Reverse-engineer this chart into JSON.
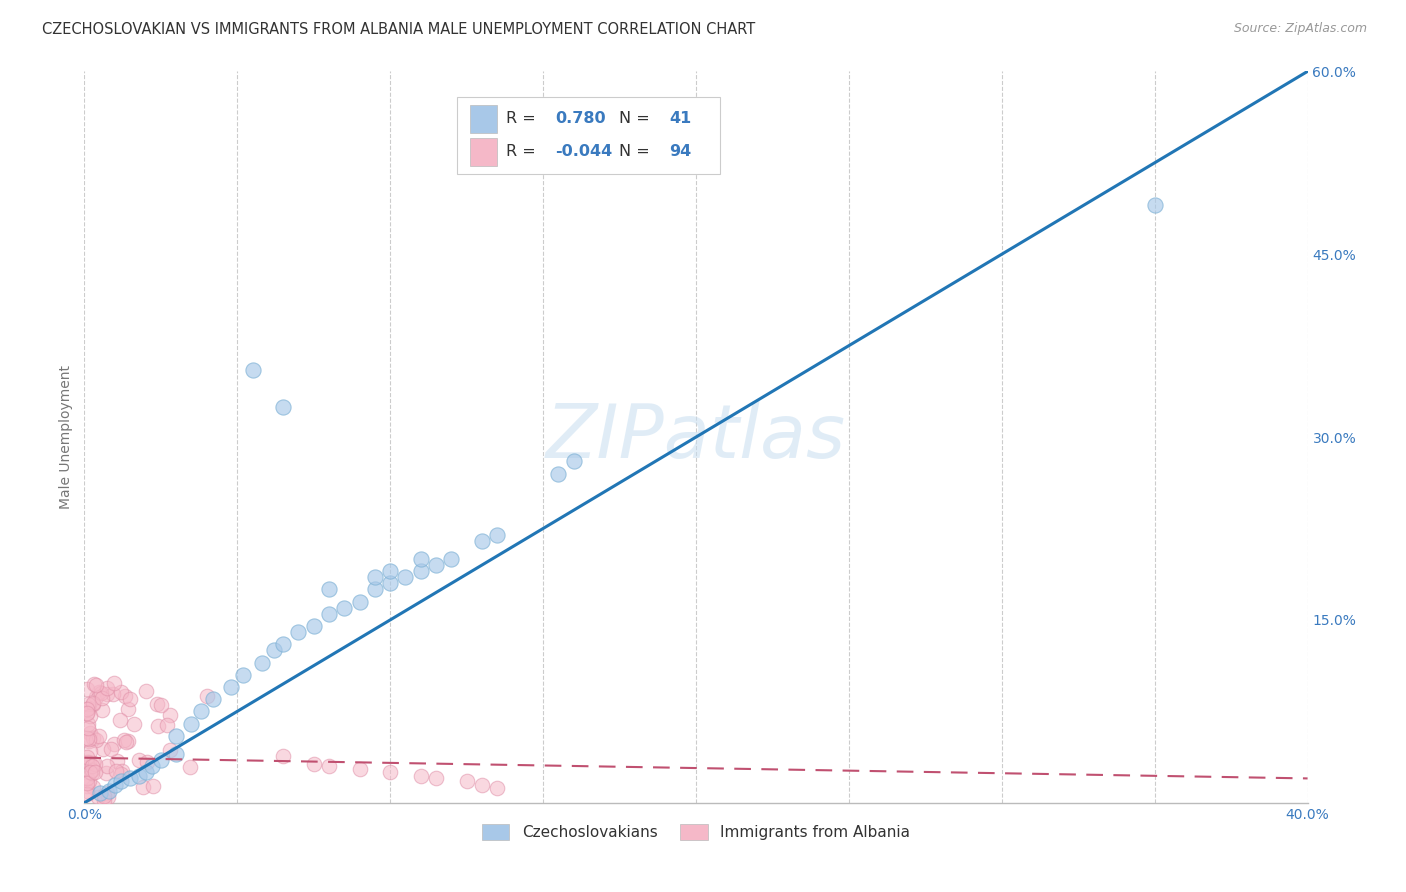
{
  "title": "CZECHOSLOVAKIAN VS IMMIGRANTS FROM ALBANIA MALE UNEMPLOYMENT CORRELATION CHART",
  "source": "Source: ZipAtlas.com",
  "ylabel": "Male Unemployment",
  "watermark": "ZIPatlas",
  "xlim": [
    0.0,
    0.4
  ],
  "ylim": [
    0.0,
    0.6
  ],
  "xtick_vals": [
    0.0,
    0.05,
    0.1,
    0.15,
    0.2,
    0.25,
    0.3,
    0.35,
    0.4
  ],
  "xtick_labels": [
    "0.0%",
    "",
    "",
    "",
    "",
    "",
    "",
    "",
    "40.0%"
  ],
  "ytick_vals": [
    0.0,
    0.15,
    0.3,
    0.45,
    0.6
  ],
  "ytick_labels": [
    "",
    "15.0%",
    "30.0%",
    "45.0%",
    "60.0%"
  ],
  "blue_R": "0.780",
  "blue_N": "41",
  "pink_R": "-0.044",
  "pink_N": "94",
  "blue_color": "#a8c8e8",
  "blue_edge_color": "#7aafd4",
  "blue_line_color": "#2176b5",
  "pink_color": "#f5b8c8",
  "pink_edge_color": "#e090a8",
  "pink_line_color": "#c05070",
  "legend_labels": [
    "Czechoslovakians",
    "Immigrants from Albania"
  ],
  "title_fontsize": 10.5,
  "axis_label_fontsize": 10,
  "tick_fontsize": 10,
  "legend_fontsize": 11,
  "background_color": "#ffffff",
  "grid_color": "#cccccc"
}
